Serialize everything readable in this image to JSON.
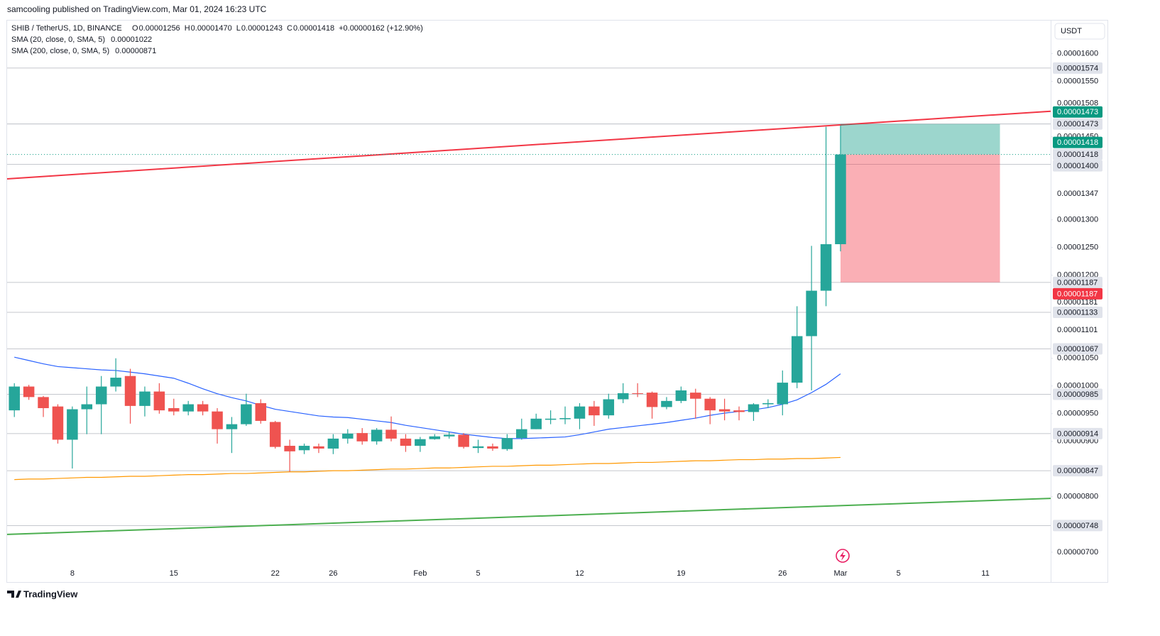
{
  "header": {
    "text": "samcooling published on TradingView.com, Mar 01, 2024 16:23 UTC"
  },
  "footer": {
    "brand": "TradingView"
  },
  "currency_button": "USDT",
  "legend": {
    "symbol": "SHIB / TetherUS, 1D, BINANCE",
    "ohlc": [
      {
        "key": "O",
        "text": "0.00001256"
      },
      {
        "key": "H",
        "text": "0.00001470"
      },
      {
        "key": "L",
        "text": "0.00001243"
      },
      {
        "key": "C",
        "text": "0.00001418"
      }
    ],
    "change": "+0.00000162 (+12.90%)"
  },
  "chart_data": {
    "type": "candlestick",
    "up_color": "#26a69a",
    "down_color": "#ef5350",
    "categories": [
      null,
      null,
      null,
      null,
      "8",
      null,
      null,
      null,
      null,
      null,
      null,
      "15",
      null,
      null,
      null,
      null,
      null,
      null,
      "22",
      null,
      null,
      null,
      "26",
      null,
      null,
      null,
      null,
      null,
      "Feb",
      null,
      null,
      null,
      "5",
      null,
      null,
      null,
      null,
      null,
      null,
      "12",
      null,
      null,
      null,
      null,
      null,
      null,
      "19",
      null,
      null,
      null,
      null,
      null,
      null,
      "26",
      null,
      null,
      null,
      "Mar",
      null,
      null,
      null,
      "5",
      null,
      null,
      null,
      null,
      null,
      "11",
      null,
      null,
      null,
      null
    ],
    "open": [
      9.56e-06,
      9.99e-06,
      9.8e-06,
      9.63e-06,
      9.03e-06,
      9.58e-06,
      9.67e-06,
      9.99e-06,
      1.018e-05,
      9.64e-06,
      9.9e-06,
      9.6e-06,
      9.54e-06,
      9.67e-06,
      9.54e-06,
      9.22e-06,
      9.31e-06,
      9.69e-06,
      9.35e-06,
      8.92e-06,
      8.84e-06,
      8.91e-06,
      8.87e-06,
      9.05e-06,
      9.15e-06,
      9e-06,
      9.21e-06,
      9.05e-06,
      8.92e-06,
      9.04e-06,
      9.09e-06,
      9.12e-06,
      8.88e-06,
      8.91e-06,
      8.86e-06,
      9.06e-06,
      9.22e-06,
      9.39e-06,
      9.4e-06,
      9.41e-06,
      9.63e-06,
      9.47e-06,
      9.76e-06,
      9.87e-06,
      9.88e-06,
      9.62e-06,
      9.73e-06,
      9.88e-06,
      9.77e-06,
      9.58e-06,
      9.56e-06,
      9.53e-06,
      9.67e-06,
      9.67e-06,
      1.006e-05,
      1.09e-05,
      1.172e-05,
      1.256e-05,
      null,
      null,
      null,
      null,
      null,
      null,
      null,
      null,
      null,
      null,
      null,
      null,
      null,
      null
    ],
    "high": [
      1.005e-05,
      1.002e-05,
      9.82e-06,
      9.67e-06,
      9.63e-06,
      9.99e-06,
      1.018e-05,
      1.05e-05,
      1.031e-05,
      9.99e-06,
      1.005e-05,
      9.77e-06,
      9.73e-06,
      9.73e-06,
      9.6e-06,
      9.44e-06,
      9.86e-06,
      9.76e-06,
      9.37e-06,
      9.03e-06,
      8.96e-06,
      8.96e-06,
      9.13e-06,
      9.22e-06,
      9.24e-06,
      9.24e-06,
      9.45e-06,
      9.13e-06,
      9.08e-06,
      9.13e-06,
      9.18e-06,
      9.15e-06,
      9.03e-06,
      8.96e-06,
      9.13e-06,
      9.41e-06,
      9.5e-06,
      9.56e-06,
      9.63e-06,
      9.69e-06,
      9.73e-06,
      9.86e-06,
      1.005e-05,
      1.005e-05,
      9.9e-06,
      9.8e-06,
      9.99e-06,
      9.95e-06,
      9.8e-06,
      9.77e-06,
      9.63e-06,
      9.69e-06,
      9.76e-06,
      1.028e-05,
      1.144e-05,
      1.253e-05,
      1.468e-05,
      1.47e-05,
      null,
      null,
      null,
      null,
      null,
      null,
      null,
      null,
      null,
      null,
      null,
      null,
      null,
      null
    ],
    "low": [
      9.44e-06,
      9.75e-06,
      9.44e-06,
      8.96e-06,
      8.51e-06,
      9.13e-06,
      9.13e-06,
      9.9e-06,
      9.32e-06,
      9.45e-06,
      9.5e-06,
      9.47e-06,
      9.47e-06,
      9.47e-06,
      8.96e-06,
      8.79e-06,
      9.28e-06,
      9.32e-06,
      8.87e-06,
      8.45e-06,
      8.77e-06,
      8.79e-06,
      8.77e-06,
      8.96e-06,
      8.94e-06,
      8.94e-06,
      9e-06,
      8.81e-06,
      8.81e-06,
      9.03e-06,
      9.05e-06,
      8.87e-06,
      8.79e-06,
      8.83e-06,
      8.83e-06,
      9.03e-06,
      9.22e-06,
      9.31e-06,
      9.31e-06,
      9.22e-06,
      9.28e-06,
      9.41e-06,
      9.69e-06,
      9.8e-06,
      9.41e-06,
      9.58e-06,
      9.69e-06,
      9.41e-06,
      9.31e-06,
      9.38e-06,
      9.38e-06,
      9.37e-06,
      9.6e-06,
      9.47e-06,
      9.96e-06,
      9.92e-06,
      1.144e-05,
      1.243e-05,
      null,
      null,
      null,
      null,
      null,
      null,
      null,
      null,
      null,
      null,
      null,
      null,
      null,
      null
    ],
    "close": [
      9.99e-06,
      9.8e-06,
      9.6e-06,
      9.03e-06,
      9.58e-06,
      9.67e-06,
      9.99e-06,
      1.015e-05,
      9.64e-06,
      9.9e-06,
      9.56e-06,
      9.54e-06,
      9.67e-06,
      9.54e-06,
      9.22e-06,
      9.31e-06,
      9.67e-06,
      9.37e-06,
      8.9e-06,
      8.82e-06,
      8.92e-06,
      8.87e-06,
      9.05e-06,
      9.14e-06,
      9e-06,
      9.21e-06,
      9.05e-06,
      8.92e-06,
      9.04e-06,
      9.09e-06,
      9.12e-06,
      8.9e-06,
      8.91e-06,
      8.87e-06,
      9.06e-06,
      9.22e-06,
      9.41e-06,
      9.41e-06,
      9.42e-06,
      9.63e-06,
      9.47e-06,
      9.76e-06,
      9.87e-06,
      9.86e-06,
      9.62e-06,
      9.73e-06,
      9.92e-06,
      9.77e-06,
      9.56e-06,
      9.54e-06,
      9.53e-06,
      9.67e-06,
      9.69e-06,
      1.006e-05,
      1.09e-05,
      1.172e-05,
      1.256e-05,
      1.418e-05,
      null,
      null,
      null,
      null,
      null,
      null,
      null,
      null,
      null,
      null,
      null,
      null,
      null,
      null
    ],
    "series": [
      {
        "name": "SMA (20, close, 0, SMA, 5)",
        "color": "#2962ff",
        "values": [
          1.052e-05,
          1.046e-05,
          1.04e-05,
          1.035e-05,
          1.033e-05,
          1.031e-05,
          1.029e-05,
          1.028e-05,
          1.025e-05,
          1.022e-05,
          1.018e-05,
          1.014e-05,
          1.005e-05,
          9.95e-06,
          9.86e-06,
          9.79e-06,
          9.73e-06,
          9.65e-06,
          9.58e-06,
          9.54e-06,
          9.5e-06,
          9.46e-06,
          9.44e-06,
          9.43e-06,
          9.4e-06,
          9.37e-06,
          9.34e-06,
          9.29e-06,
          9.25e-06,
          9.21e-06,
          9.17e-06,
          9.13e-06,
          9.1e-06,
          9.07e-06,
          9.05e-06,
          9.05e-06,
          9.06e-06,
          9.07e-06,
          9.08e-06,
          9.12e-06,
          9.17e-06,
          9.22e-06,
          9.25e-06,
          9.28e-06,
          9.31e-06,
          9.34e-06,
          9.38e-06,
          9.42e-06,
          9.47e-06,
          9.51e-06,
          9.54e-06,
          9.57e-06,
          9.61e-06,
          9.67e-06,
          9.75e-06,
          9.88e-06,
          1.003e-05,
          1.022e-05,
          null,
          null,
          null,
          null,
          null,
          null,
          null,
          null,
          null,
          null,
          null,
          null,
          null,
          null
        ]
      },
      {
        "name": "SMA (200, close, 0, SMA, 5)",
        "color": "#ff9800",
        "values": [
          8.31e-06,
          8.32e-06,
          8.32e-06,
          8.33e-06,
          8.34e-06,
          8.35e-06,
          8.35e-06,
          8.36e-06,
          8.37e-06,
          8.37e-06,
          8.38e-06,
          8.39e-06,
          8.4e-06,
          8.4e-06,
          8.41e-06,
          8.42e-06,
          8.42e-06,
          8.43e-06,
          8.44e-06,
          8.45e-06,
          8.45e-06,
          8.46e-06,
          8.47e-06,
          8.47e-06,
          8.48e-06,
          8.49e-06,
          8.5e-06,
          8.5e-06,
          8.51e-06,
          8.52e-06,
          8.52e-06,
          8.53e-06,
          8.54e-06,
          8.55e-06,
          8.55e-06,
          8.56e-06,
          8.57e-06,
          8.57e-06,
          8.58e-06,
          8.59e-06,
          8.6e-06,
          8.6e-06,
          8.61e-06,
          8.62e-06,
          8.62e-06,
          8.63e-06,
          8.64e-06,
          8.65e-06,
          8.65e-06,
          8.66e-06,
          8.67e-06,
          8.67e-06,
          8.68e-06,
          8.68e-06,
          8.69e-06,
          8.69e-06,
          8.7e-06,
          8.71e-06,
          null,
          null,
          null,
          null,
          null,
          null,
          null,
          null,
          null,
          null,
          null,
          null,
          null,
          null
        ]
      }
    ],
    "trend_lines": [
      {
        "color": "#f23645",
        "values": [
          1.374e-05,
          1.496e-05
        ]
      },
      {
        "color": "#4caf50",
        "values": [
          7.32e-06,
          7.97e-06
        ]
      }
    ],
    "levels": [
      1.574e-05,
      1.473e-05,
      {
        "value": 1.4e-05,
        "label": "0.00001400"
      },
      1.187e-05,
      1.133e-05,
      1.067e-05,
      9.85e-06,
      9.14e-06,
      8.47e-06,
      7.48e-06
    ],
    "position": {
      "target": 1.473e-05,
      "entry": 1.418e-05,
      "stop": 1.187e-05,
      "target_color": "#089981",
      "stop_color": "#f23645"
    },
    "axis_labels": [
      1.508e-05,
      1.347e-05,
      1.181e-05,
      1.101e-05
    ],
    "ylim": [
      6.46e-06,
      1.661e-05
    ],
    "yticks": [
      {
        "value": 1.6e-05,
        "label": "0.00001600"
      },
      {
        "value": 1.55e-05,
        "label": "0.00001550"
      },
      {
        "value": 1.45e-05,
        "label": "0.00001450"
      },
      {
        "value": 1.3e-05,
        "label": "0.00001300"
      },
      {
        "value": 1.25e-05,
        "label": "0.00001250"
      },
      {
        "value": 1.2e-05,
        "label": "0.00001200"
      },
      {
        "value": 1.05e-05,
        "label": "0.00001050"
      },
      {
        "value": 1e-05,
        "label": "0.00001000"
      },
      {
        "value": 9.5e-06,
        "label": "0.00000950"
      },
      {
        "value": 9e-06,
        "label": "0.00000900"
      },
      {
        "value": 8e-06,
        "label": "0.00000800"
      },
      {
        "value": 7e-06,
        "label": "0.00000700"
      }
    ],
    "grid": false
  }
}
